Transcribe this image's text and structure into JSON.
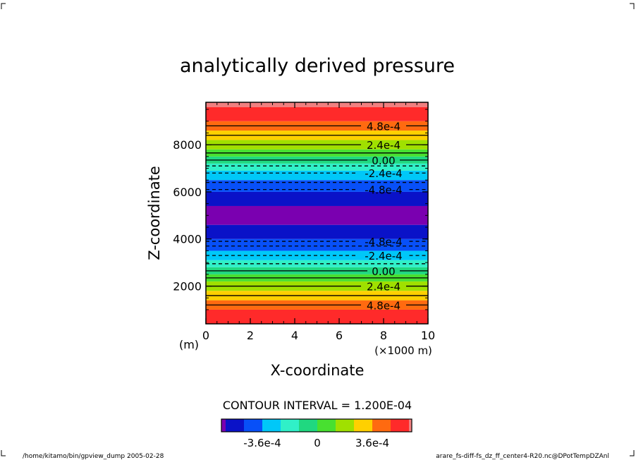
{
  "chart_data": {
    "type": "contour",
    "title": "analytically derived pressure",
    "xlabel": "X-coordinate",
    "ylabel": "Z-coordinate",
    "x_unit_left": "(m)",
    "x_unit_right": "(×1000 m)",
    "xlim": [
      0,
      10
    ],
    "ylim": [
      400,
      9600
    ],
    "x_ticks": [
      "0",
      "2",
      "4",
      "6",
      "8",
      "10"
    ],
    "x_tick_values": [
      0,
      2,
      4,
      6,
      8,
      10
    ],
    "y_ticks": [
      "2000",
      "4000",
      "6000",
      "8000"
    ],
    "y_tick_values": [
      2000,
      4000,
      6000,
      8000
    ],
    "contour_interval_text": "CONTOUR INTERVAL = 1.200E-04",
    "bands": [
      {
        "z0": 400,
        "z1": 1000,
        "color": "#ff2a2a"
      },
      {
        "z0": 1000,
        "z1": 1400,
        "color": "#ff6a10"
      },
      {
        "z0": 1400,
        "z1": 1800,
        "color": "#ffd000"
      },
      {
        "z0": 1800,
        "z1": 2200,
        "color": "#a0e000"
      },
      {
        "z0": 2200,
        "z1": 2500,
        "color": "#48e030"
      },
      {
        "z0": 2500,
        "z1": 2800,
        "color": "#20d880"
      },
      {
        "z0": 2800,
        "z1": 3100,
        "color": "#30f0c8"
      },
      {
        "z0": 3100,
        "z1": 3500,
        "color": "#00c8f8"
      },
      {
        "z0": 3500,
        "z1": 4000,
        "color": "#0850f8"
      },
      {
        "z0": 4000,
        "z1": 4600,
        "color": "#0a12c8"
      },
      {
        "z0": 4600,
        "z1": 5400,
        "color": "#7a00b0"
      },
      {
        "z0": 5400,
        "z1": 6000,
        "color": "#0a12c8"
      },
      {
        "z0": 6000,
        "z1": 6500,
        "color": "#0850f8"
      },
      {
        "z0": 6500,
        "z1": 6900,
        "color": "#00c8f8"
      },
      {
        "z0": 6900,
        "z1": 7200,
        "color": "#30f0c8"
      },
      {
        "z0": 7200,
        "z1": 7500,
        "color": "#20d880"
      },
      {
        "z0": 7500,
        "z1": 7800,
        "color": "#48e030"
      },
      {
        "z0": 7800,
        "z1": 8200,
        "color": "#a0e000"
      },
      {
        "z0": 8200,
        "z1": 8600,
        "color": "#ffd000"
      },
      {
        "z0": 8600,
        "z1": 9000,
        "color": "#ff6a10"
      },
      {
        "z0": 9000,
        "z1": 9600,
        "color": "#ff2a2a"
      },
      {
        "z0": 9600,
        "z1": 9800,
        "color": "#f08080"
      }
    ],
    "contours": [
      {
        "z": 1200,
        "value": 0.00048,
        "label": "4.8e-4",
        "dashed": false,
        "labeled": true
      },
      {
        "z": 1600,
        "value": 0.00036,
        "label": "",
        "dashed": false,
        "labeled": false
      },
      {
        "z": 2000,
        "value": 0.00024,
        "label": "2.4e-4",
        "dashed": false,
        "labeled": true
      },
      {
        "z": 2350,
        "value": 0.00012,
        "label": "",
        "dashed": false,
        "labeled": false
      },
      {
        "z": 2650,
        "value": 0.0,
        "label": "0.00",
        "dashed": false,
        "labeled": true
      },
      {
        "z": 2950,
        "value": -0.00012,
        "label": "",
        "dashed": true,
        "labeled": false
      },
      {
        "z": 3300,
        "value": -0.00024,
        "label": "-2.4e-4",
        "dashed": true,
        "labeled": true
      },
      {
        "z": 3700,
        "value": -0.00036,
        "label": "",
        "dashed": true,
        "labeled": false
      },
      {
        "z": 3900,
        "value": -0.00048,
        "label": "-4.8e-4",
        "dashed": true,
        "labeled": true
      },
      {
        "z": 6100,
        "value": -0.00048,
        "label": "-4.8e-4",
        "dashed": true,
        "labeled": true
      },
      {
        "z": 6400,
        "value": -0.00036,
        "label": "",
        "dashed": true,
        "labeled": false
      },
      {
        "z": 6800,
        "value": -0.00024,
        "label": "-2.4e-4",
        "dashed": true,
        "labeled": true
      },
      {
        "z": 7100,
        "value": -0.00012,
        "label": "",
        "dashed": true,
        "labeled": false
      },
      {
        "z": 7350,
        "value": 0.0,
        "label": "0.00",
        "dashed": false,
        "labeled": true
      },
      {
        "z": 7650,
        "value": 0.00012,
        "label": "",
        "dashed": false,
        "labeled": false
      },
      {
        "z": 8000,
        "value": 0.00024,
        "label": "2.4e-4",
        "dashed": false,
        "labeled": true
      },
      {
        "z": 8400,
        "value": 0.00036,
        "label": "",
        "dashed": false,
        "labeled": false
      },
      {
        "z": 8800,
        "value": 0.00048,
        "label": "4.8e-4",
        "dashed": false,
        "labeled": true
      }
    ],
    "colorbar": {
      "colors": [
        "#7a00b0",
        "#0a12c8",
        "#0850f8",
        "#00c8f8",
        "#30f0c8",
        "#20d880",
        "#48e030",
        "#a0e000",
        "#ffd000",
        "#ff6a10",
        "#ff2a2a",
        "#f08080"
      ],
      "tick_labels": [
        "-3.6e-4",
        "0",
        "3.6e-4"
      ],
      "tick_values": [
        -0.00036,
        0,
        0.00036
      ],
      "vmin": -0.0006,
      "vmax": 0.0006
    }
  },
  "footer": {
    "left": "/home/kitamo/bin/gpview_dump  2005-02-28",
    "right": "arare_fs-diff-fs_dz_ff_center4-R20.nc@DPotTempDZAnl"
  }
}
